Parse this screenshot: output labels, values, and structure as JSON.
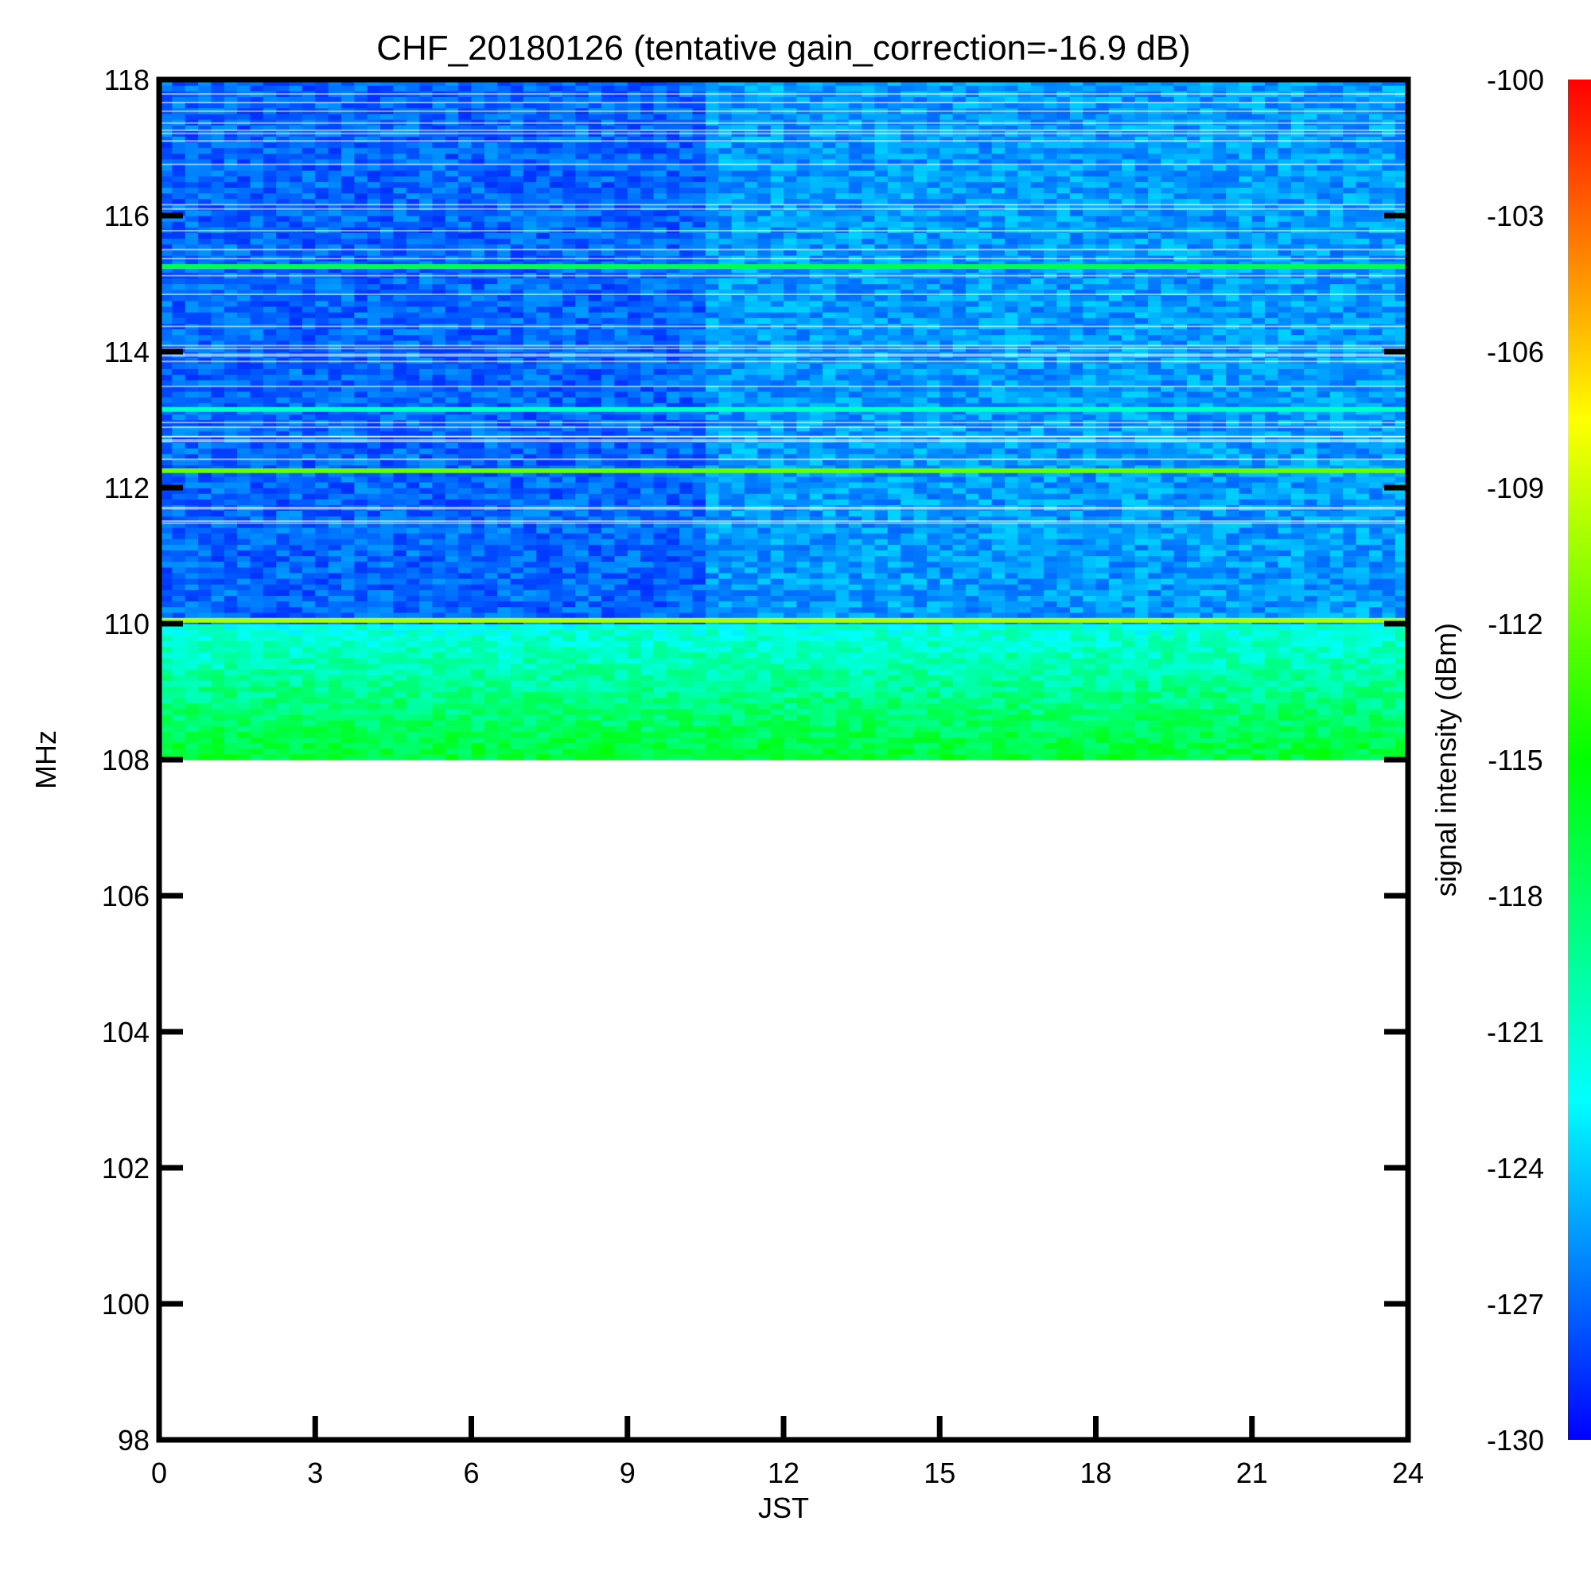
{
  "chart_data": {
    "type": "heatmap",
    "title": "CHF_20180126 (tentative gain_correction=-16.9 dB)",
    "xlabel": "JST",
    "ylabel": "MHz",
    "xlim": [
      0,
      24
    ],
    "ylim": [
      98,
      118
    ],
    "x_ticks": [
      "0",
      "3",
      "6",
      "9",
      "12",
      "15",
      "18",
      "21",
      "24"
    ],
    "y_ticks": [
      "98",
      "100",
      "102",
      "104",
      "106",
      "108",
      "110",
      "112",
      "114",
      "116",
      "118"
    ],
    "data_frequency_range": [
      108,
      118
    ],
    "colorbar": {
      "label": "signal intensity (dBm)",
      "range": [
        -130,
        -100
      ],
      "ticks": [
        "-100",
        "-103",
        "-106",
        "-109",
        "-112",
        "-115",
        "-118",
        "-121",
        "-124",
        "-127",
        "-130"
      ],
      "colormap": [
        "#0000ff",
        "#00ffff",
        "#00ff00",
        "#ffff00",
        "#ff0000"
      ]
    },
    "strong_lines": [
      {
        "freq": 110.05,
        "level": -110
      },
      {
        "freq": 112.25,
        "level": -112
      },
      {
        "freq": 115.25,
        "level": -117
      },
      {
        "freq": 113.15,
        "level": -121
      }
    ]
  }
}
